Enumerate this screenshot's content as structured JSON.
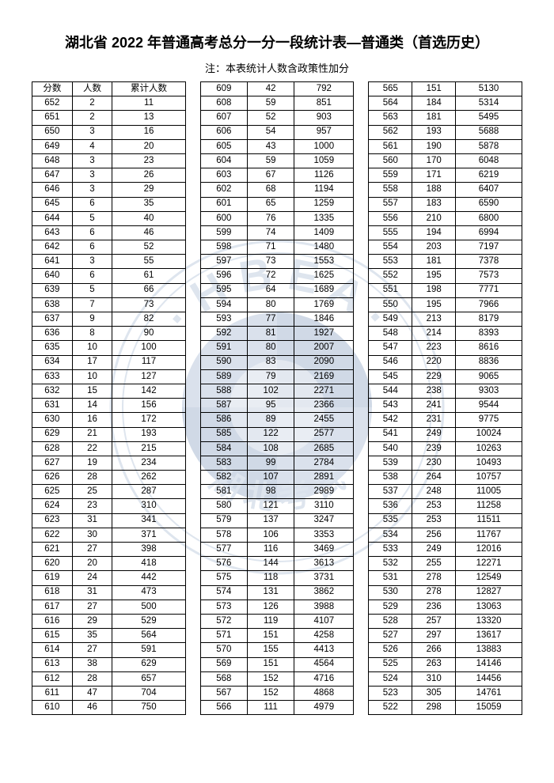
{
  "title": "湖北省 2022 年普通高考总分一分一段统计表—普通类（首选历史）",
  "note": "注：本表统计人数含政策性加分",
  "headers": {
    "score": "分数",
    "count": "人数",
    "cum": "累计人数"
  },
  "columns": [
    {
      "hasHeader": true,
      "rows": [
        [
          652,
          2,
          11
        ],
        [
          651,
          2,
          13
        ],
        [
          650,
          3,
          16
        ],
        [
          649,
          4,
          20
        ],
        [
          648,
          3,
          23
        ],
        [
          647,
          3,
          26
        ],
        [
          646,
          3,
          29
        ],
        [
          645,
          6,
          35
        ],
        [
          644,
          5,
          40
        ],
        [
          643,
          6,
          46
        ],
        [
          642,
          6,
          52
        ],
        [
          641,
          3,
          55
        ],
        [
          640,
          6,
          61
        ],
        [
          639,
          5,
          66
        ],
        [
          638,
          7,
          73
        ],
        [
          637,
          9,
          82
        ],
        [
          636,
          8,
          90
        ],
        [
          635,
          10,
          100
        ],
        [
          634,
          17,
          117
        ],
        [
          633,
          10,
          127
        ],
        [
          632,
          15,
          142
        ],
        [
          631,
          14,
          156
        ],
        [
          630,
          16,
          172
        ],
        [
          629,
          21,
          193
        ],
        [
          628,
          22,
          215
        ],
        [
          627,
          19,
          234
        ],
        [
          626,
          28,
          262
        ],
        [
          625,
          25,
          287
        ],
        [
          624,
          23,
          310
        ],
        [
          623,
          31,
          341
        ],
        [
          622,
          30,
          371
        ],
        [
          621,
          27,
          398
        ],
        [
          620,
          20,
          418
        ],
        [
          619,
          24,
          442
        ],
        [
          618,
          31,
          473
        ],
        [
          617,
          27,
          500
        ],
        [
          616,
          29,
          529
        ],
        [
          615,
          35,
          564
        ],
        [
          614,
          27,
          591
        ],
        [
          613,
          38,
          629
        ],
        [
          612,
          28,
          657
        ],
        [
          611,
          47,
          704
        ],
        [
          610,
          46,
          750
        ]
      ]
    },
    {
      "hasHeader": false,
      "rows": [
        [
          609,
          42,
          792
        ],
        [
          608,
          59,
          851
        ],
        [
          607,
          52,
          903
        ],
        [
          606,
          54,
          957
        ],
        [
          605,
          43,
          1000
        ],
        [
          604,
          59,
          1059
        ],
        [
          603,
          67,
          1126
        ],
        [
          602,
          68,
          1194
        ],
        [
          601,
          65,
          1259
        ],
        [
          600,
          76,
          1335
        ],
        [
          599,
          74,
          1409
        ],
        [
          598,
          71,
          1480
        ],
        [
          597,
          73,
          1553
        ],
        [
          596,
          72,
          1625
        ],
        [
          595,
          64,
          1689
        ],
        [
          594,
          80,
          1769
        ],
        [
          593,
          77,
          1846
        ],
        [
          592,
          81,
          1927
        ],
        [
          591,
          80,
          2007
        ],
        [
          590,
          83,
          2090
        ],
        [
          589,
          79,
          2169
        ],
        [
          588,
          102,
          2271
        ],
        [
          587,
          95,
          2366
        ],
        [
          586,
          89,
          2455
        ],
        [
          585,
          122,
          2577
        ],
        [
          584,
          108,
          2685
        ],
        [
          583,
          99,
          2784
        ],
        [
          582,
          107,
          2891
        ],
        [
          581,
          98,
          2989
        ],
        [
          580,
          121,
          3110
        ],
        [
          579,
          137,
          3247
        ],
        [
          578,
          106,
          3353
        ],
        [
          577,
          116,
          3469
        ],
        [
          576,
          144,
          3613
        ],
        [
          575,
          118,
          3731
        ],
        [
          574,
          131,
          3862
        ],
        [
          573,
          126,
          3988
        ],
        [
          572,
          119,
          4107
        ],
        [
          571,
          151,
          4258
        ],
        [
          570,
          155,
          4413
        ],
        [
          569,
          151,
          4564
        ],
        [
          568,
          152,
          4716
        ],
        [
          567,
          152,
          4868
        ],
        [
          566,
          111,
          4979
        ]
      ]
    },
    {
      "hasHeader": false,
      "rows": [
        [
          565,
          151,
          5130
        ],
        [
          564,
          184,
          5314
        ],
        [
          563,
          181,
          5495
        ],
        [
          562,
          193,
          5688
        ],
        [
          561,
          190,
          5878
        ],
        [
          560,
          170,
          6048
        ],
        [
          559,
          171,
          6219
        ],
        [
          558,
          188,
          6407
        ],
        [
          557,
          183,
          6590
        ],
        [
          556,
          210,
          6800
        ],
        [
          555,
          194,
          6994
        ],
        [
          554,
          203,
          7197
        ],
        [
          553,
          181,
          7378
        ],
        [
          552,
          195,
          7573
        ],
        [
          551,
          198,
          7771
        ],
        [
          550,
          195,
          7966
        ],
        [
          549,
          213,
          8179
        ],
        [
          548,
          214,
          8393
        ],
        [
          547,
          223,
          8616
        ],
        [
          546,
          220,
          8836
        ],
        [
          545,
          229,
          9065
        ],
        [
          544,
          238,
          9303
        ],
        [
          543,
          241,
          9544
        ],
        [
          542,
          231,
          9775
        ],
        [
          541,
          249,
          10024
        ],
        [
          540,
          239,
          10263
        ],
        [
          539,
          230,
          10493
        ],
        [
          538,
          264,
          10757
        ],
        [
          537,
          248,
          11005
        ],
        [
          536,
          253,
          11258
        ],
        [
          535,
          253,
          11511
        ],
        [
          534,
          256,
          11767
        ],
        [
          533,
          249,
          12016
        ],
        [
          532,
          255,
          12271
        ],
        [
          531,
          278,
          12549
        ],
        [
          530,
          278,
          12827
        ],
        [
          529,
          236,
          13063
        ],
        [
          528,
          257,
          13320
        ],
        [
          527,
          297,
          13617
        ],
        [
          526,
          266,
          13883
        ],
        [
          525,
          263,
          14146
        ],
        [
          524,
          310,
          14456
        ],
        [
          523,
          305,
          14761
        ],
        [
          522,
          298,
          15059
        ]
      ]
    }
  ],
  "watermark": {
    "circle_color": "#8aa3c4",
    "text": "HBEA",
    "text_color": "#8aa3c4",
    "center_color": "#6b88b3"
  }
}
